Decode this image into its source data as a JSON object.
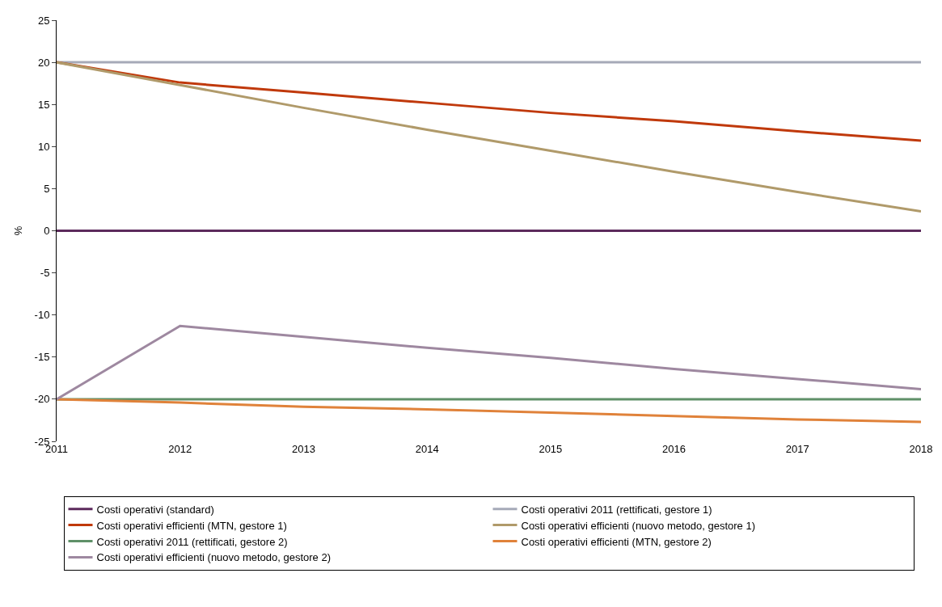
{
  "chart_data": {
    "type": "line",
    "ylabel": "%",
    "x": [
      2011,
      2012,
      2013,
      2014,
      2015,
      2016,
      2017,
      2018
    ],
    "xlim": [
      2011,
      2018
    ],
    "xticks": [
      2011,
      2012,
      2013,
      2014,
      2015,
      2016,
      2017,
      2018
    ],
    "ylim": [
      -25,
      25
    ],
    "yticks": [
      -25,
      -20,
      -15,
      -10,
      -5,
      0,
      5,
      10,
      15,
      20,
      25
    ],
    "grid": false,
    "legend": "bottom",
    "marker": "none",
    "line_style": "solid",
    "series": [
      {
        "name": "Costi operativi (standard)",
        "color": "#5c2a5c",
        "values": [
          0,
          0,
          0,
          0,
          0,
          0,
          0,
          0
        ]
      },
      {
        "name": "Costi operativi 2011 (rettificati, gestore 1)",
        "color": "#a6aab8",
        "values": [
          20,
          20,
          20,
          20,
          20,
          20,
          20,
          20
        ]
      },
      {
        "name": "Costi operativi efficienti (MTN, gestore 1)",
        "color": "#c0390b",
        "values": [
          20,
          17.6,
          16.4,
          15.2,
          14.0,
          13.0,
          11.8,
          10.7
        ]
      },
      {
        "name": "Costi operativi efficienti (nuovo metodo, gestore 1)",
        "color": "#b09a6a",
        "values": [
          20,
          17.3,
          14.6,
          12.0,
          9.5,
          7.0,
          4.6,
          2.3
        ]
      },
      {
        "name": "Costi operativi 2011 (rettificati, gestore 2)",
        "color": "#5f9068",
        "values": [
          -20,
          -20,
          -20,
          -20,
          -20,
          -20,
          -20,
          -20
        ]
      },
      {
        "name": "Costi operativi efficienti (MTN, gestore 2)",
        "color": "#e0823a",
        "values": [
          -20,
          -20.4,
          -20.9,
          -21.2,
          -21.6,
          -22.0,
          -22.4,
          -22.7
        ]
      },
      {
        "name": "Costi operativi efficienti (nuovo metodo, gestore 2)",
        "color": "#9e88a0",
        "values": [
          -20,
          -11.3,
          -12.6,
          -13.9,
          -15.1,
          -16.4,
          -17.6,
          -18.8
        ]
      }
    ]
  }
}
